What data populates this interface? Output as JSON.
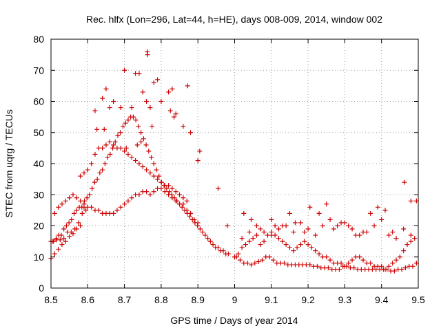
{
  "chart_data": {
    "type": "scatter",
    "title": "Rec. hlfx (Lon=296, Lat=44, h=HE), days 008-009, 2014, window 002",
    "xlabel": "GPS time / Days of year 2014",
    "ylabel": "STEC from uqrg / TECUs",
    "xlim": [
      8.5,
      9.5
    ],
    "ylim": [
      0,
      80
    ],
    "xticks": [
      8.5,
      8.6,
      8.7,
      8.8,
      8.9,
      9.0,
      9.1,
      9.2,
      9.3,
      9.4,
      9.5
    ],
    "xtick_labels": [
      "8.5",
      "8.6",
      "8.7",
      "8.8",
      "8.9",
      "9",
      "9.1",
      "9.2",
      "9.3",
      "9.4",
      "9.5"
    ],
    "yticks": [
      0,
      10,
      20,
      30,
      40,
      50,
      60,
      70,
      80
    ],
    "ytick_labels": [
      "0",
      "10",
      "20",
      "30",
      "40",
      "50",
      "60",
      "70",
      "80"
    ],
    "grid": true,
    "marker": "+",
    "marker_color": "#cc0000",
    "series": [
      {
        "name": "STEC",
        "x": [
          8.5,
          8.505,
          8.51,
          8.515,
          8.52,
          8.525,
          8.53,
          8.535,
          8.54,
          8.545,
          8.55,
          8.555,
          8.56,
          8.565,
          8.57,
          8.575,
          8.58,
          8.585,
          8.59,
          8.595,
          8.5,
          8.507,
          8.514,
          8.521,
          8.528,
          8.535,
          8.542,
          8.549,
          8.556,
          8.563,
          8.57,
          8.577,
          8.584,
          8.591,
          8.598,
          8.605,
          8.612,
          8.619,
          8.626,
          8.633,
          8.64,
          8.647,
          8.654,
          8.661,
          8.668,
          8.675,
          8.682,
          8.689,
          8.696,
          8.703,
          8.71,
          8.717,
          8.724,
          8.731,
          8.738,
          8.745,
          8.752,
          8.759,
          8.766,
          8.773,
          8.78,
          8.787,
          8.794,
          8.801,
          8.808,
          8.815,
          8.822,
          8.829,
          8.836,
          8.843,
          8.85,
          8.857,
          8.864,
          8.871,
          8.878,
          8.885,
          8.892,
          8.899,
          8.906,
          8.913,
          8.92,
          8.927,
          8.934,
          8.941,
          8.948,
          8.955,
          8.962,
          8.969,
          8.976,
          8.983,
          8.51,
          8.52,
          8.53,
          8.54,
          8.55,
          8.56,
          8.57,
          8.58,
          8.59,
          8.6,
          8.61,
          8.62,
          8.63,
          8.64,
          8.65,
          8.66,
          8.67,
          8.68,
          8.69,
          8.7,
          8.71,
          8.72,
          8.73,
          8.74,
          8.75,
          8.76,
          8.77,
          8.78,
          8.79,
          8.8,
          8.81,
          8.82,
          8.83,
          8.84,
          8.85,
          8.86,
          8.87,
          8.88,
          8.89,
          8.9,
          8.58,
          8.59,
          8.6,
          8.61,
          8.62,
          8.63,
          8.64,
          8.65,
          8.66,
          8.67,
          8.68,
          8.69,
          8.7,
          8.71,
          8.72,
          8.73,
          8.74,
          8.75,
          8.76,
          8.77,
          8.78,
          8.79,
          8.8,
          8.81,
          8.82,
          8.83,
          8.84,
          8.85,
          8.86,
          8.87,
          8.62,
          8.64,
          8.65,
          8.66,
          8.67,
          8.69,
          8.7,
          8.72,
          8.73,
          8.74,
          8.75,
          8.76,
          8.77,
          8.78,
          8.79,
          8.8,
          8.82,
          8.83,
          8.84,
          8.86,
          8.88,
          8.9,
          8.625,
          8.645,
          8.705,
          8.735,
          8.745,
          8.762,
          8.763,
          8.775,
          8.825,
          8.835,
          8.872,
          8.905,
          8.955,
          8.98,
          9.0,
          9.01,
          9.02,
          9.03,
          9.04,
          9.05,
          9.06,
          9.07,
          9.08,
          9.09,
          9.1,
          9.11,
          9.12,
          9.13,
          9.14,
          9.15,
          9.16,
          9.17,
          9.18,
          9.19,
          9.2,
          9.21,
          9.22,
          9.23,
          9.24,
          9.25,
          9.26,
          9.27,
          9.28,
          9.29,
          9.3,
          9.31,
          9.32,
          9.33,
          9.34,
          9.35,
          9.36,
          9.37,
          9.38,
          9.39,
          9.4,
          9.41,
          9.42,
          9.43,
          9.44,
          9.45,
          9.46,
          9.47,
          9.48,
          9.49,
          9.005,
          9.015,
          9.025,
          9.035,
          9.045,
          9.055,
          9.065,
          9.075,
          9.085,
          9.095,
          9.105,
          9.115,
          9.125,
          9.135,
          9.145,
          9.155,
          9.165,
          9.175,
          9.185,
          9.195,
          9.205,
          9.215,
          9.225,
          9.235,
          9.245,
          9.255,
          9.265,
          9.275,
          9.285,
          9.295,
          9.305,
          9.315,
          9.325,
          9.335,
          9.345,
          9.355,
          9.365,
          9.375,
          9.385,
          9.395,
          9.405,
          9.415,
          9.425,
          9.435,
          9.445,
          9.455,
          9.465,
          9.475,
          9.485,
          9.495,
          9.02,
          9.04,
          9.06,
          9.08,
          9.1,
          9.12,
          9.14,
          9.16,
          9.18,
          9.2,
          9.22,
          9.24,
          9.26,
          9.28,
          9.3,
          9.32,
          9.34,
          9.36,
          9.38,
          9.4,
          9.42,
          9.44,
          9.46,
          9.48,
          9.025,
          9.045,
          9.07,
          9.1,
          9.11,
          9.13,
          9.15,
          9.165,
          9.19,
          9.205,
          9.23,
          9.25,
          9.27,
          9.29,
          9.31,
          9.33,
          9.35,
          9.37,
          9.39,
          9.41,
          9.43,
          9.462,
          9.48,
          9.495
        ],
        "y": [
          9.5,
          15,
          11,
          15.5,
          12.5,
          15.5,
          14,
          16,
          15,
          18,
          16.5,
          18,
          17.5,
          19,
          19,
          21,
          20,
          24,
          26,
          25,
          15,
          15,
          16,
          17,
          17,
          19,
          20,
          21,
          22,
          24,
          25,
          26,
          26,
          28,
          29,
          30,
          32,
          34,
          35,
          37,
          38,
          40,
          42,
          43,
          45,
          47,
          49,
          50,
          52,
          53,
          54,
          55,
          55,
          54,
          52,
          50,
          48,
          46,
          44,
          42,
          40,
          38,
          36,
          34,
          33,
          32,
          31,
          30,
          29,
          28,
          27,
          26,
          25,
          24,
          23,
          22,
          21,
          20,
          19,
          18,
          17,
          16,
          15,
          14,
          13,
          13,
          12,
          12,
          11,
          11,
          24,
          26,
          27,
          28,
          29,
          30,
          29,
          28,
          27,
          26,
          26,
          25,
          25,
          24,
          24,
          24,
          24,
          25,
          26,
          27,
          28,
          29,
          30,
          30,
          31,
          31,
          30,
          31,
          32,
          32,
          31,
          30,
          29,
          28,
          27,
          27,
          25,
          24,
          22,
          21,
          36,
          37,
          38,
          40,
          43,
          45,
          45,
          46,
          47,
          46,
          45,
          45,
          44,
          43,
          42,
          41,
          40,
          39,
          38,
          37,
          36,
          35,
          34,
          33,
          33,
          32,
          31,
          30,
          29,
          28,
          57,
          61,
          64,
          58,
          60,
          58,
          70,
          58,
          69,
          69,
          63,
          60,
          58,
          66,
          67,
          60,
          63,
          64,
          56,
          52,
          50,
          41,
          51,
          51,
          45,
          46,
          47,
          76,
          75,
          52,
          57,
          55,
          65,
          44,
          32,
          20,
          10,
          11,
          13,
          14,
          15,
          16,
          17,
          14,
          15,
          17,
          18,
          17,
          16,
          15,
          14,
          13,
          12,
          13,
          14,
          15,
          14,
          13,
          12,
          11,
          10,
          10,
          9,
          8,
          8,
          8,
          7,
          8,
          9,
          10,
          10,
          9,
          8,
          8,
          7,
          7,
          7,
          6,
          7,
          8,
          9,
          10,
          12,
          14,
          15,
          16,
          10,
          9,
          8,
          8,
          7.5,
          8,
          8.5,
          9,
          10,
          10,
          9,
          8,
          8,
          8,
          7.5,
          7.5,
          7.5,
          7.5,
          7.5,
          7.5,
          7.5,
          7,
          7,
          6.5,
          6.5,
          6.5,
          6,
          6,
          6,
          7,
          7,
          6.5,
          6.5,
          6,
          6,
          6,
          6,
          6,
          6,
          6,
          6,
          6,
          5.5,
          5.5,
          6,
          6,
          6.5,
          7,
          7,
          8,
          16,
          18,
          20,
          18,
          17,
          19,
          20,
          18,
          21,
          19,
          17,
          20,
          22,
          20,
          21,
          19,
          17,
          18,
          20,
          22,
          17,
          16,
          19,
          17,
          24,
          22,
          19,
          22,
          20,
          20,
          24,
          21,
          18,
          26,
          24,
          27,
          19,
          21,
          20,
          17,
          18,
          24,
          26,
          25,
          18,
          34,
          28,
          28
        ]
      }
    ]
  }
}
